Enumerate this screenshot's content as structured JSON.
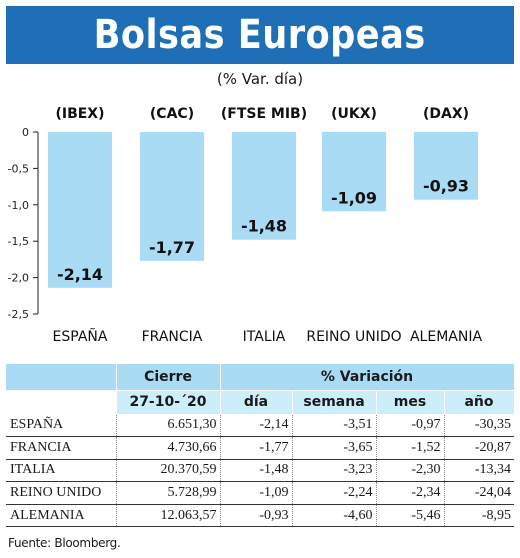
{
  "header": {
    "title": "Bolsas Europeas",
    "subtitle": "(% Var. día)"
  },
  "colors": {
    "banner": "#1f6fb6",
    "bar": "#a9dcf4",
    "table_header": "#a9dcf4",
    "table_subheader": "#cceefb"
  },
  "chart_data": {
    "type": "bar",
    "categories": [
      "ESPAÑA",
      "FRANCIA",
      "ITALIA",
      "REINO UNIDO",
      "ALEMANIA"
    ],
    "indices": [
      "(IBEX)",
      "(CAC)",
      "(FTSE MIB)",
      "(UKX)",
      "(DAX)"
    ],
    "values": [
      -2.14,
      -1.77,
      -1.48,
      -1.09,
      -0.93
    ],
    "value_labels": [
      "-2,14",
      "-1,77",
      "-1,48",
      "-1,09",
      "-0,93"
    ],
    "yticks": [
      0,
      -0.5,
      -1.0,
      -1.5,
      -2.0,
      -2.5
    ],
    "ytick_labels": [
      "0",
      "-0,5",
      "-1,0",
      "-1,5",
      "-2,0",
      "-2,5"
    ],
    "ylim": [
      -2.5,
      0
    ],
    "grid": false,
    "legend": "none"
  },
  "table": {
    "group_headers": {
      "cierre": "Cierre",
      "variation": "% Variación"
    },
    "sub_headers": [
      "27-10-´20",
      "día",
      "semana",
      "mes",
      "año"
    ],
    "rows": [
      {
        "name": "ESPAÑA",
        "close": "6.651,30",
        "day": "-2,14",
        "week": "-3,51",
        "month": "-0,97",
        "year": "-30,35"
      },
      {
        "name": "FRANCIA",
        "close": "4.730,66",
        "day": "-1,77",
        "week": "-3,65",
        "month": "-1,52",
        "year": "-20,87"
      },
      {
        "name": "ITALIA",
        "close": "20.370,59",
        "day": "-1,48",
        "week": "-3,23",
        "month": "-2,30",
        "year": "-13,34"
      },
      {
        "name": "REINO UNIDO",
        "close": "5.728,99",
        "day": "-1,09",
        "week": "-2,24",
        "month": "-2,34",
        "year": "-24,04"
      },
      {
        "name": "ALEMANIA",
        "close": "12.063,57",
        "day": "-0,93",
        "week": "-4,60",
        "month": "-5,46",
        "year": "-8,95"
      }
    ]
  },
  "footer": {
    "source": "Fuente: Bloomberg."
  }
}
